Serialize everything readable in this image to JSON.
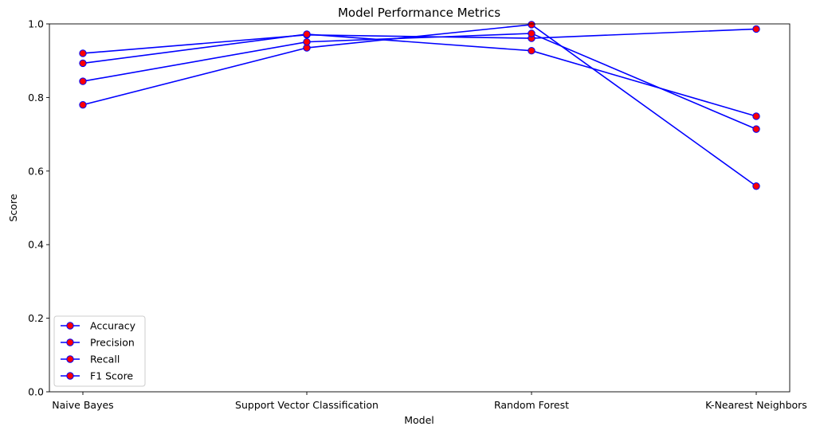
{
  "chart_data": {
    "type": "line",
    "title": "Model Performance Metrics",
    "xlabel": "Model",
    "ylabel": "Score",
    "categories": [
      "Naive Bayes",
      "Support Vector Classification",
      "Random Forest",
      "K-Nearest Neighbors"
    ],
    "ylim": [
      0,
      1.0
    ],
    "yticks": [
      0.0,
      0.2,
      0.4,
      0.6,
      0.8,
      1.0
    ],
    "ytick_labels": [
      "0.0",
      "0.2",
      "0.4",
      "0.6",
      "0.8",
      "1.0"
    ],
    "grid": false,
    "legend_position": "lower-left",
    "line_color": "#0000ff",
    "marker_color": "#ff0000",
    "series": [
      {
        "name": "Accuracy",
        "values": [
          0.92,
          0.97,
          0.961,
          0.986
        ]
      },
      {
        "name": "Precision",
        "values": [
          0.78,
          0.935,
          0.998,
          0.559
        ]
      },
      {
        "name": "Recall",
        "values": [
          0.893,
          0.972,
          0.927,
          0.749
        ]
      },
      {
        "name": "F1 Score",
        "values": [
          0.844,
          0.951,
          0.974,
          0.714
        ]
      }
    ]
  }
}
